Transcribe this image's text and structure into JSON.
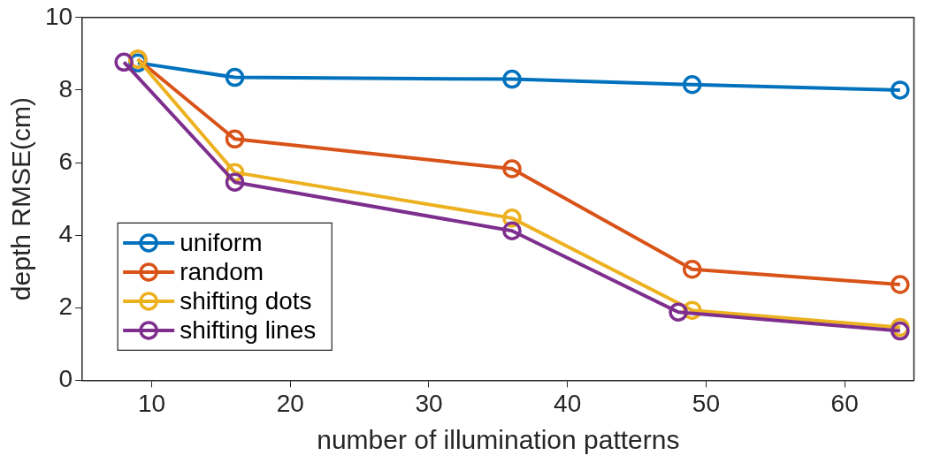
{
  "chart_data": {
    "type": "line",
    "xlabel": "number of illumination patterns",
    "ylabel": "depth RMSE(cm)",
    "xlim": [
      5,
      65
    ],
    "xticks": [
      10,
      20,
      30,
      40,
      50,
      60
    ],
    "ylim": [
      0,
      10
    ],
    "yticks": [
      0,
      2,
      4,
      6,
      8,
      10
    ],
    "grid": false,
    "legend": "bottom left",
    "marker": "circle",
    "line_style": "solid",
    "series": [
      {
        "name": "uniform",
        "color": "#0072bd",
        "x": [
          9,
          16,
          36,
          49,
          64
        ],
        "values": [
          8.75,
          8.35,
          8.3,
          8.15,
          8.0
        ]
      },
      {
        "name": "random",
        "color": "#d95319",
        "x": [
          9,
          16,
          36,
          49,
          64
        ],
        "values": [
          8.85,
          6.65,
          5.83,
          3.06,
          2.64
        ]
      },
      {
        "name": "shifting dots",
        "color": "#edb120",
        "x": [
          9,
          16,
          36,
          49,
          64
        ],
        "values": [
          8.85,
          5.73,
          4.47,
          1.93,
          1.46
        ]
      },
      {
        "name": "shifting lines",
        "color": "#7e2f8e",
        "x": [
          8,
          16,
          36,
          48,
          64
        ],
        "values": [
          8.77,
          5.46,
          4.12,
          1.88,
          1.36
        ]
      }
    ]
  }
}
